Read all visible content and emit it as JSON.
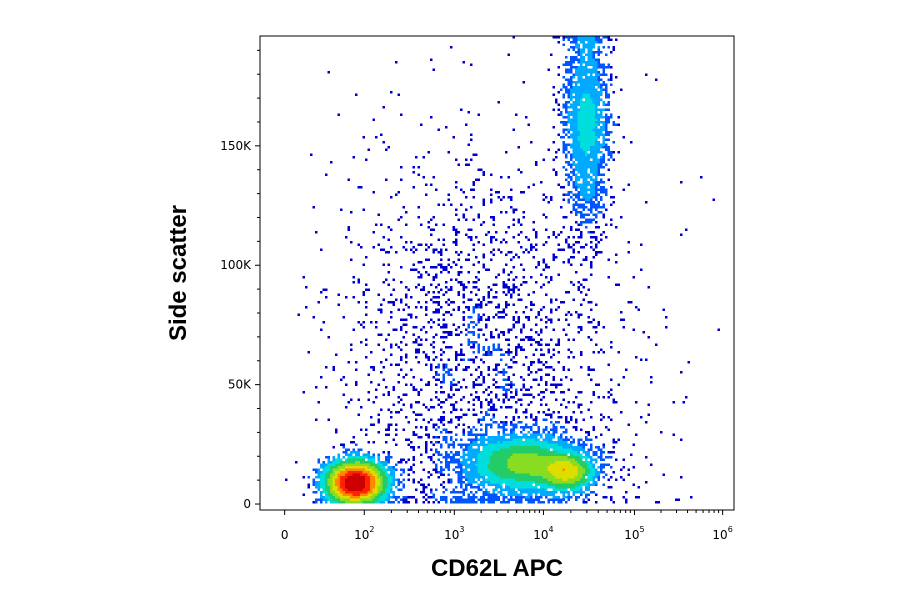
{
  "chart_data": {
    "type": "scatter",
    "plot_kind": "flow cytometry density dot plot",
    "xlabel": "CD62L APC",
    "ylabel": "Side scatter",
    "x_scale": "biexponential (linear near 0, log above)",
    "x_ticks": [
      {
        "value": 0,
        "label": "0"
      },
      {
        "value": 100,
        "base": "10",
        "exp": "2"
      },
      {
        "value": 1000,
        "base": "10",
        "exp": "3"
      },
      {
        "value": 10000,
        "base": "10",
        "exp": "4"
      },
      {
        "value": 100000,
        "base": "10",
        "exp": "5"
      },
      {
        "value": 1000000,
        "base": "10",
        "exp": "6"
      }
    ],
    "y_ticks": [
      {
        "value": 0,
        "label": "0"
      },
      {
        "value": 50000,
        "label": "50K"
      },
      {
        "value": 100000,
        "label": "100K"
      },
      {
        "value": 150000,
        "label": "150K"
      }
    ],
    "xlim": [
      -150,
      1200000
    ],
    "ylim": [
      -2500,
      196000
    ],
    "grid": false,
    "legend": "none",
    "density_colors": [
      "#0000cc",
      "#0055ff",
      "#00aaff",
      "#00dddd",
      "#22cc66",
      "#88dd22",
      "#dddd00",
      "#ff8800",
      "#ff2200",
      "#cc0000"
    ],
    "populations": [
      {
        "x_center": 80,
        "x_spread_decades": 0.18,
        "y_center": 9000,
        "y_spread": 4500,
        "relative_size": 0.34,
        "peak_density": "red"
      },
      {
        "x_center": 6000,
        "x_spread_decades": 0.35,
        "y_center": 17000,
        "y_spread": 6000,
        "relative_size": 0.26,
        "peak_density": "green"
      },
      {
        "x_center": 18000,
        "x_spread_decades": 0.15,
        "y_center": 13000,
        "y_spread": 3500,
        "relative_size": 0.1,
        "peak_density": "yellow"
      },
      {
        "x_center": 30000,
        "x_spread_decades": 0.12,
        "y_center": 160000,
        "y_spread": 22000,
        "relative_size": 0.14,
        "peak_density": "green"
      },
      {
        "x_center": 2000,
        "x_spread_decades": 0.8,
        "y_center": 60000,
        "y_spread": 45000,
        "relative_size": 0.16,
        "peak_density": "blue"
      }
    ]
  }
}
